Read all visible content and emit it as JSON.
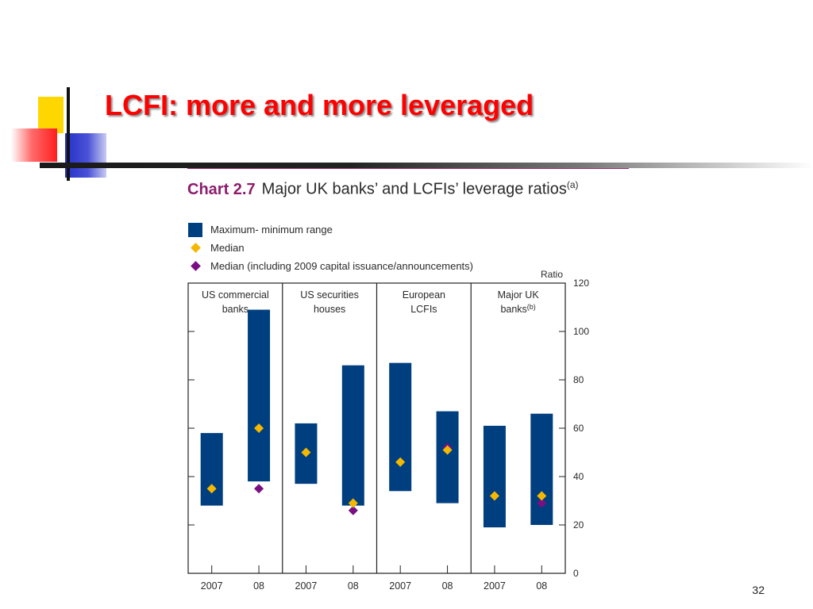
{
  "slide": {
    "title": "LCFI: more and more leveraged",
    "page_number": "32"
  },
  "colors": {
    "title": "#ff0000",
    "range_bar": "#003f7f",
    "median": "#f5b800",
    "median_2009": "#7a0f82",
    "chart_number": "#8c1d6e"
  },
  "chart_data": {
    "type": "bar",
    "chart_number": "Chart 2.7",
    "title": "Major UK banks’ and LCFIs’ leverage ratios",
    "title_note": "(a)",
    "ylabel": "Ratio",
    "ylim": [
      0,
      120
    ],
    "yticks": [
      "0",
      "20",
      "40",
      "60",
      "80",
      "100",
      "120"
    ],
    "legend": {
      "range": "Maximum- minimum range",
      "median": "Median",
      "median_2009": "Median (including 2009 capital issuance/announcements)"
    },
    "groups": [
      {
        "label": "US commercial banks",
        "note": ""
      },
      {
        "label": "US securities houses",
        "note": ""
      },
      {
        "label": "European LCFIs",
        "note": ""
      },
      {
        "label": "Major UK banks",
        "note": "(b)"
      }
    ],
    "categories": [
      "2007",
      "08",
      "2007",
      "08",
      "2007",
      "08",
      "2007",
      "08"
    ],
    "series": [
      {
        "name": "Maximum- minimum range",
        "min": [
          28,
          38,
          37,
          28,
          34,
          29,
          19,
          20
        ],
        "max": [
          58,
          109,
          62,
          86,
          87,
          67,
          61,
          66
        ]
      },
      {
        "name": "Median",
        "values": [
          35,
          60,
          50,
          29,
          46,
          51,
          32,
          32
        ]
      },
      {
        "name": "Median (including 2009 capital issuance/announcements)",
        "values": [
          null,
          35,
          null,
          26,
          null,
          52,
          null,
          29
        ]
      }
    ]
  }
}
